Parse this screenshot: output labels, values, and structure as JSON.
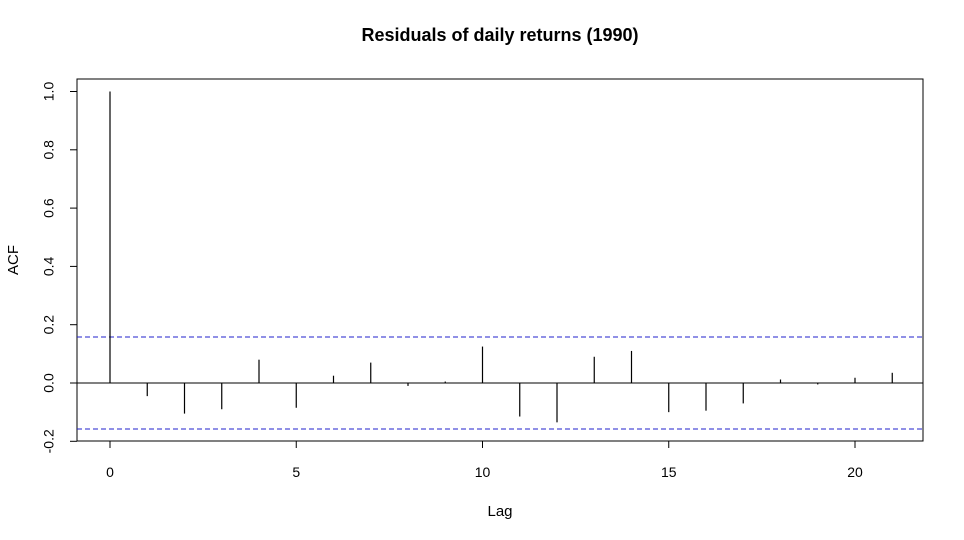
{
  "chart_data": {
    "type": "bar",
    "title": "Residuals of daily returns (1990)",
    "xlabel": "Lag",
    "ylabel": "ACF",
    "xlim": [
      -1,
      22
    ],
    "ylim": [
      -0.2,
      1.0
    ],
    "x_ticks": [
      0,
      5,
      10,
      15,
      20
    ],
    "y_ticks": [
      -0.2,
      0.0,
      0.2,
      0.4,
      0.6,
      0.8,
      1.0
    ],
    "x_tick_labels": [
      "0",
      "5",
      "10",
      "15",
      "20"
    ],
    "y_tick_labels": [
      "-0.2",
      "0.0",
      "0.2",
      "0.4",
      "0.6",
      "0.8",
      "1.0"
    ],
    "lags": [
      0,
      1,
      2,
      3,
      4,
      5,
      6,
      7,
      8,
      9,
      10,
      11,
      12,
      13,
      14,
      15,
      16,
      17,
      18,
      19,
      20,
      21
    ],
    "acf": [
      1.0,
      -0.045,
      -0.105,
      -0.09,
      0.08,
      -0.085,
      0.025,
      0.07,
      -0.01,
      0.005,
      0.125,
      -0.115,
      -0.135,
      0.09,
      0.11,
      -0.1,
      -0.095,
      -0.07,
      0.012,
      -0.005,
      0.018,
      0.035
    ],
    "ci_upper": 0.158,
    "ci_lower": -0.158,
    "colors": {
      "bars": "#000000",
      "ci": "#2020cc",
      "zero_line": "#000000"
    }
  }
}
